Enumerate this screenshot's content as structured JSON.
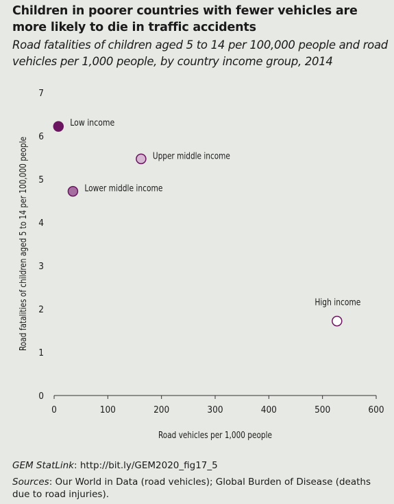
{
  "title": "Children in poorer countries with fewer vehicles are more likely to die in traffic accidents",
  "subtitle": "Road fatalities of children aged 5 to 14 per 100,000 people and road vehicles per 1,000 people, by country income group, 2014",
  "footer": {
    "statlink_label": "GEM StatLink",
    "statlink_url": ": http://bit.ly/GEM2020_fig17_5",
    "sources_label": "Sources",
    "sources_text": ": Our World in Data (road vehicles); Global Burden of Disease (deaths due to road injuries)."
  },
  "chart_data": {
    "type": "scatter",
    "xlabel": "Road vehicles per 1,000 people",
    "ylabel": "Road fatalities of children aged 5 to 14 per 100,000 people",
    "xlim": [
      0,
      600
    ],
    "ylim": [
      0,
      7
    ],
    "xticks": [
      0,
      100,
      200,
      300,
      400,
      500,
      600
    ],
    "yticks": [
      0,
      1,
      2,
      3,
      4,
      5,
      6,
      7
    ],
    "grid": false,
    "points": [
      {
        "label": "Low income",
        "x": 8,
        "y": 6.22,
        "color": "#6b1560"
      },
      {
        "label": "Upper middle income",
        "x": 162,
        "y": 5.47,
        "color": "#d6b8d3"
      },
      {
        "label": "Lower middle income",
        "x": 35,
        "y": 4.72,
        "color": "#a56da0"
      },
      {
        "label": "High income",
        "x": 527,
        "y": 1.72,
        "color": "#ffffff"
      }
    ],
    "marker_stroke": "#6b1560"
  }
}
